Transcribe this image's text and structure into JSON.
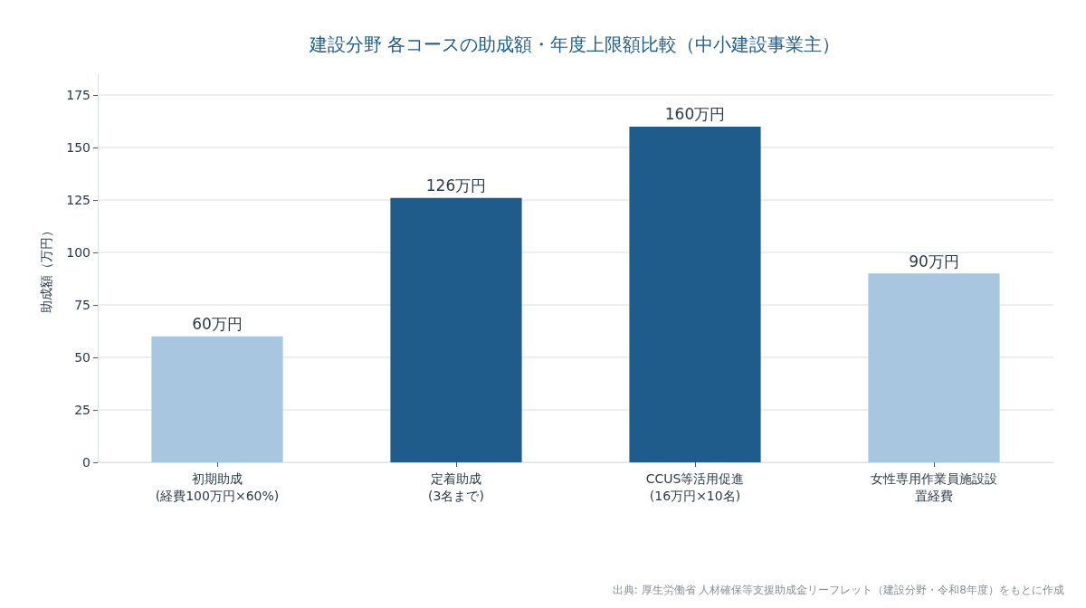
{
  "chart_data": {
    "type": "bar",
    "title": "建設分野 各コースの助成額・年度上限額比較（中小建設事業主）",
    "ylabel": "助成額（万円）",
    "categories": [
      "初期助成\n(経費100万円×60%)",
      "定着助成\n(3名まで)",
      "CCUS等活用促進\n(16万円×10名)",
      "女性専用作業員施設設置経費"
    ],
    "values": [
      60,
      126,
      160,
      90
    ],
    "colors": [
      "#a9c6e0",
      "#1f5c8b",
      "#1f5c8b",
      "#a9c6e0"
    ],
    "value_labels": [
      "60万円",
      "126万円",
      "160万円",
      "90万円"
    ],
    "ylim": [
      0,
      185
    ],
    "yticks": [
      0,
      25,
      50,
      75,
      100,
      125,
      150,
      175
    ],
    "grid": "y",
    "annotations": [
      "出典: 厚生労働省 人材確保等支援助成金リーフレット（建設分野・令和8年度）をもとに作成"
    ]
  }
}
